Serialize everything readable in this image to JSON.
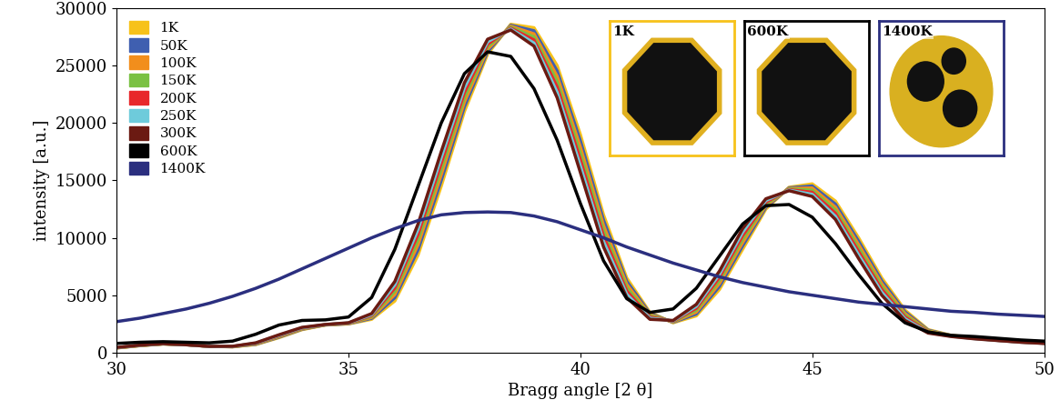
{
  "chart_data": {
    "type": "line",
    "x_label": "Bragg angle [2 θ]",
    "y_label": "intensity [a.u.]",
    "xlim": [
      30,
      50
    ],
    "xticks": [
      30,
      35,
      40,
      45,
      50
    ],
    "ylim": [
      0,
      30000
    ],
    "yticks": [
      0,
      5000,
      10000,
      15000,
      20000,
      25000,
      30000
    ],
    "grid": false,
    "legend": "upper left",
    "x": [
      30,
      30.5,
      31,
      31.5,
      32,
      32.5,
      33,
      33.5,
      34,
      34.5,
      35,
      35.5,
      36,
      36.5,
      37,
      37.5,
      38,
      38.5,
      39,
      39.5,
      40,
      40.5,
      41,
      41.5,
      42,
      42.5,
      43,
      43.5,
      44,
      44.5,
      45,
      45.5,
      46,
      46.5,
      47,
      47.5,
      48,
      48.5,
      49,
      49.5,
      50
    ],
    "series": [
      {
        "name": "1K",
        "color": "#f7c21a",
        "values": [
          400,
          600,
          750,
          700,
          550,
          500,
          700,
          1300,
          2000,
          2400,
          2500,
          2900,
          4500,
          8500,
          14500,
          21000,
          26000,
          28600,
          28300,
          25000,
          19000,
          12000,
          6500,
          3500,
          2600,
          3200,
          5500,
          9000,
          12500,
          14400,
          14700,
          13200,
          10000,
          6500,
          3700,
          2000,
          1500,
          1300,
          1100,
          950,
          850
        ]
      },
      {
        "name": "50K",
        "color": "#3f5fb0",
        "values": [
          410,
          610,
          755,
          695,
          550,
          510,
          725,
          1340,
          2035,
          2410,
          2515,
          2985,
          4785,
          8950,
          15000,
          21415,
          26215,
          28515,
          28035,
          24535,
          18450,
          11535,
          6215,
          3400,
          2635,
          3365,
          5765,
          9300,
          12650,
          14350,
          14515,
          12935,
          9700,
          6250,
          3550,
          1950,
          1485,
          1285,
          1090,
          940,
          840
        ]
      },
      {
        "name": "100K",
        "color": "#f28e1c",
        "values": [
          415,
          615,
          760,
          695,
          545,
          515,
          750,
          1385,
          2065,
          2415,
          2535,
          3065,
          5065,
          9400,
          15500,
          21835,
          26435,
          28435,
          27765,
          24065,
          17900,
          11065,
          5935,
          3300,
          2665,
          3535,
          6035,
          9600,
          12800,
          14300,
          14335,
          12665,
          9400,
          6000,
          3400,
          1900,
          1465,
          1265,
          1085,
          935,
          835
        ]
      },
      {
        "name": "150K",
        "color": "#7ac143",
        "values": [
          425,
          625,
          765,
          690,
          545,
          525,
          775,
          1425,
          2100,
          2425,
          2550,
          3150,
          5350,
          9850,
          16000,
          22250,
          26650,
          28350,
          27500,
          23600,
          17350,
          10600,
          5650,
          3200,
          2700,
          3700,
          6300,
          9900,
          12950,
          14250,
          14150,
          12400,
          9100,
          5750,
          3250,
          1850,
          1450,
          1250,
          1075,
          925,
          825
        ]
      },
      {
        "name": "200K",
        "color": "#e8282b",
        "values": [
          435,
          635,
          770,
          685,
          545,
          535,
          800,
          1465,
          2135,
          2435,
          2565,
          3235,
          5635,
          10300,
          16500,
          22665,
          26865,
          28265,
          27235,
          23135,
          16800,
          10135,
          5365,
          3100,
          2735,
          3865,
          6565,
          10200,
          13100,
          14200,
          13965,
          12135,
          8800,
          5500,
          3100,
          1800,
          1435,
          1235,
          1065,
          915,
          815
        ]
      },
      {
        "name": "250K",
        "color": "#6ecbdb",
        "values": [
          440,
          640,
          775,
          685,
          540,
          540,
          825,
          1510,
          2165,
          2440,
          2585,
          3315,
          5915,
          10750,
          17000,
          23085,
          27085,
          28185,
          26965,
          22665,
          16250,
          9665,
          5085,
          3000,
          2765,
          4035,
          6835,
          10500,
          13250,
          14150,
          13785,
          11865,
          8500,
          5250,
          2950,
          1750,
          1415,
          1215,
          1060,
          910,
          810
        ]
      },
      {
        "name": "300K",
        "color": "#6b1a12",
        "values": [
          450,
          650,
          780,
          680,
          540,
          550,
          850,
          1550,
          2200,
          2450,
          2600,
          3400,
          6200,
          11200,
          17500,
          23500,
          27300,
          28100,
          26700,
          22200,
          15700,
          9200,
          4800,
          2900,
          2800,
          4200,
          7100,
          10800,
          13400,
          14100,
          13600,
          11600,
          8200,
          5000,
          2800,
          1700,
          1400,
          1200,
          1050,
          900,
          800
        ]
      },
      {
        "name": "600K",
        "color": "#000000",
        "values": [
          800,
          900,
          950,
          900,
          850,
          1000,
          1600,
          2400,
          2800,
          2850,
          3100,
          4800,
          9000,
          14500,
          20000,
          24300,
          26200,
          25800,
          23000,
          18500,
          13000,
          8000,
          4700,
          3500,
          3800,
          5600,
          8400,
          11200,
          12800,
          12900,
          11800,
          9500,
          6800,
          4300,
          2600,
          1800,
          1500,
          1400,
          1250,
          1100,
          1000
        ]
      },
      {
        "name": "1400K",
        "color": "#2b2f7f",
        "values": [
          2700,
          3000,
          3400,
          3800,
          4300,
          4900,
          5600,
          6400,
          7300,
          8200,
          9100,
          10000,
          10800,
          11500,
          12000,
          12200,
          12250,
          12200,
          11900,
          11400,
          10700,
          10000,
          9200,
          8500,
          7800,
          7200,
          6600,
          6100,
          5700,
          5300,
          5000,
          4700,
          4400,
          4200,
          4000,
          3800,
          3600,
          3500,
          3350,
          3250,
          3150
        ]
      }
    ],
    "annotations": [
      {
        "text": "1K",
        "color": "#f7c21a"
      },
      {
        "text": "600K",
        "color": "#000000"
      },
      {
        "text": "1400K",
        "color": "#2b2f7f"
      }
    ]
  }
}
